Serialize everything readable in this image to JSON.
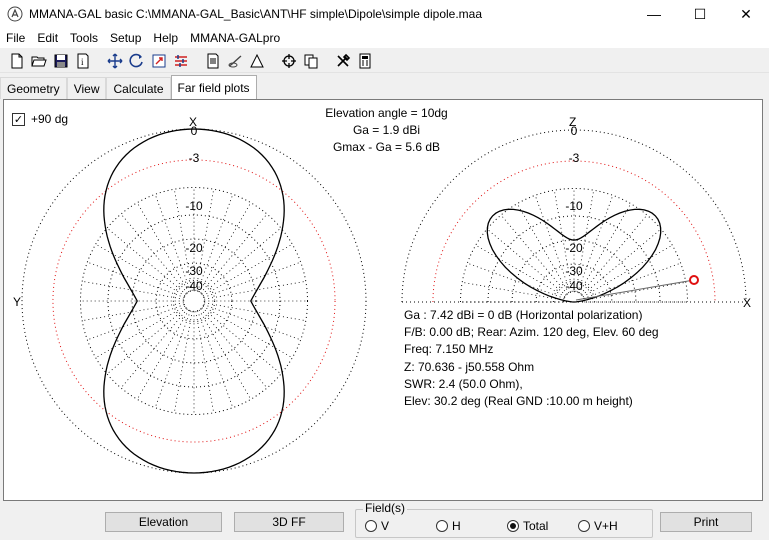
{
  "window": {
    "title": "MMANA-GAL basic C:\\MMANA-GAL_Basic\\ANT\\HF simple\\Dipole\\simple dipole.maa",
    "minimize": "—",
    "maximize": "☐",
    "close": "✕"
  },
  "menu": [
    "File",
    "Edit",
    "Tools",
    "Setup",
    "Help",
    "MMANA-GALpro"
  ],
  "tabs": [
    "Geometry",
    "View",
    "Calculate",
    "Far field plots"
  ],
  "checkbox": {
    "label": "+90 dg",
    "checked": true
  },
  "header": {
    "line1": "Elevation angle =  10dg",
    "line2": "Ga = 1.9 dBi",
    "line3": "Gmax - Ga = 5.6 dB"
  },
  "plot_labels": {
    "x": "X",
    "y": "Y",
    "z": "Z",
    "rings": [
      "0",
      "-3",
      "-10",
      "-20",
      "-30",
      "-40"
    ]
  },
  "info": [
    "Ga : 7.42 dBi = 0 dB  (Horizontal polarization)",
    "F/B: 0.00 dB; Rear: Azim. 120 deg,  Elev. 60 deg",
    "Freq: 7.150 MHz",
    "Z: 70.636 - j50.558 Ohm",
    "SWR: 2.4 (50.0 Ohm),",
    "Elev: 30.2 deg (Real GND  :10.00 m height)"
  ],
  "buttons": {
    "elevation": "Elevation",
    "ff3d": "3D FF",
    "print": "Print"
  },
  "fields": {
    "legend": "Field(s)",
    "options": [
      "V",
      "H",
      "Total",
      "V+H"
    ],
    "selected": "Total"
  },
  "colors": {
    "ring_red": "#e01010",
    "marker": "#e01010"
  }
}
